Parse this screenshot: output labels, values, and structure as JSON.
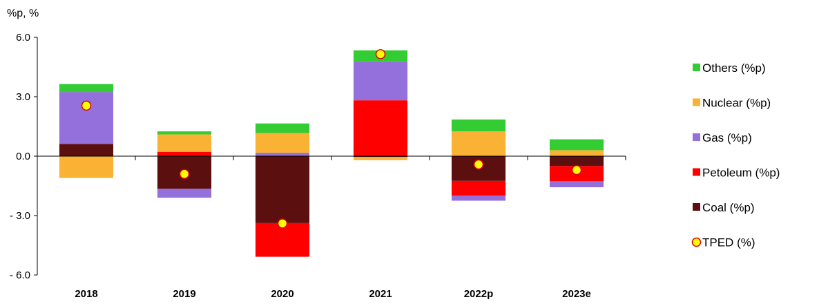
{
  "chart_data": {
    "type": "bar",
    "stacked": true,
    "unit_label": "%p, %",
    "categories": [
      "2018",
      "2019",
      "2020",
      "2021",
      "2022p",
      "2023e"
    ],
    "ylim": [
      -6.0,
      6.0
    ],
    "yticks": [
      "6.0",
      "3.0",
      "0.0",
      "- 3.0",
      "- 6.0"
    ],
    "ytick_values": [
      6.0,
      3.0,
      0.0,
      -3.0,
      -6.0
    ],
    "grid": false,
    "legend_position": "right",
    "series": [
      {
        "name": "Coal (%p)",
        "color": "#5c0f0f",
        "values": [
          0.62,
          -1.65,
          -3.38,
          -0.04,
          -1.25,
          -0.5
        ]
      },
      {
        "name": "Petoleum (%p)",
        "color": "#ff0000",
        "values": [
          0.0,
          0.22,
          -1.7,
          2.82,
          -0.75,
          -0.77
        ]
      },
      {
        "name": "Gas (%p)",
        "color": "#9370db",
        "values": [
          2.62,
          -0.45,
          0.17,
          1.95,
          -0.25,
          -0.3
        ]
      },
      {
        "name": "Nuclear (%p)",
        "color": "#f9b233",
        "values": [
          -1.1,
          0.88,
          1.0,
          -0.16,
          1.25,
          0.3
        ]
      },
      {
        "name": "Others (%p)",
        "color": "#33cc33",
        "values": [
          0.4,
          0.15,
          0.48,
          0.57,
          0.6,
          0.55
        ]
      }
    ],
    "line_series": {
      "name": "TPED (%)",
      "color": "#ffff00",
      "edge_color": "#e00000",
      "values": [
        2.55,
        -0.9,
        -3.4,
        5.15,
        -0.42,
        -0.7
      ]
    },
    "legend": [
      "Others (%p)",
      "Nuclear (%p)",
      "Gas (%p)",
      "Petoleum (%p)",
      "Coal (%p)",
      "TPED (%)"
    ]
  }
}
